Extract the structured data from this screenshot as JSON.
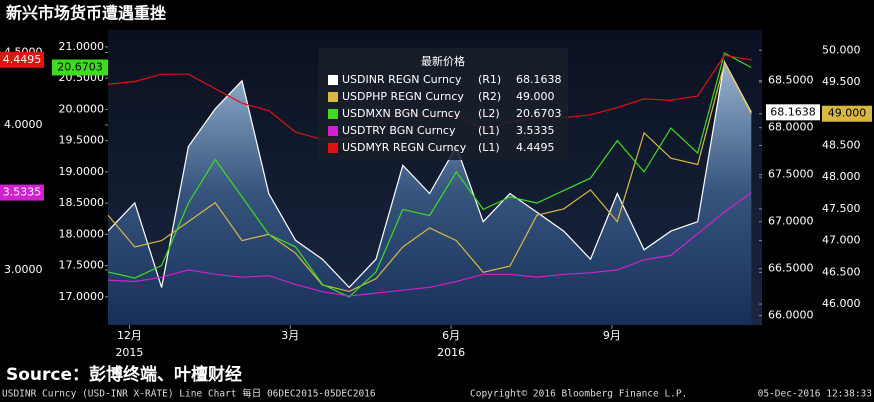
{
  "chart_data": {
    "type": "line",
    "title": "新兴市场货币遭遇重挫",
    "x": [
      0,
      0.5,
      1,
      1.5,
      2,
      2.5,
      3,
      3.5,
      4,
      4.5,
      5,
      5.5,
      6,
      6.5,
      7,
      7.5,
      8,
      8.5,
      9,
      9.5,
      10,
      10.5,
      11,
      11.5,
      12
    ],
    "xlim": [
      0,
      12.2
    ],
    "xticks": [
      {
        "value": 0.4,
        "label": "12月"
      },
      {
        "value": 3.4,
        "label": "3月"
      },
      {
        "value": 6.4,
        "label": "6月"
      },
      {
        "value": 9.4,
        "label": "9月"
      }
    ],
    "year_ticks": [
      {
        "value": 0.4,
        "label": "2015"
      },
      {
        "value": 6.4,
        "label": "2016"
      }
    ],
    "y_axes": {
      "(L1)": {
        "lim": [
          2.62,
          4.655
        ],
        "ticks": [
          {
            "value": 4.5,
            "label": "4.5000"
          },
          {
            "value": 4,
            "label": "4.0000"
          },
          {
            "value": 3,
            "label": "3.0000"
          }
        ]
      },
      "(L2)": {
        "lim": [
          16.55,
          21.27
        ],
        "ticks": [
          {
            "value": 21,
            "label": "21.0000"
          },
          {
            "value": 20.5,
            "label": "20.5000"
          },
          {
            "value": 20,
            "label": "20.0000"
          },
          {
            "value": 19.5,
            "label": "19.5000"
          },
          {
            "value": 19,
            "label": "19.0000"
          },
          {
            "value": 18.5,
            "label": "18.5000"
          },
          {
            "value": 18,
            "label": "18.0000"
          },
          {
            "value": 17.5,
            "label": "17.5000"
          },
          {
            "value": 17,
            "label": "17.0000"
          }
        ]
      },
      "(R1)": {
        "lim": [
          65.9,
          69.04
        ],
        "ticks": [
          {
            "value": 68.5,
            "label": "68.5000"
          },
          {
            "value": 68,
            "label": "68.0000"
          },
          {
            "value": 67.5,
            "label": "67.5000"
          },
          {
            "value": 67,
            "label": "67.0000"
          },
          {
            "value": 66.5,
            "label": "66.5000"
          },
          {
            "value": 66,
            "label": "66.0000"
          }
        ]
      },
      "(R2)": {
        "lim": [
          45.67,
          50.32
        ],
        "ticks": [
          {
            "value": 50,
            "label": "50.000"
          },
          {
            "value": 49.5,
            "label": "49.500"
          },
          {
            "value": 49,
            "label": "49.000"
          },
          {
            "value": 48.5,
            "label": "48.500"
          },
          {
            "value": 48,
            "label": "48.000"
          },
          {
            "value": 47.5,
            "label": "47.500"
          },
          {
            "value": 47,
            "label": "47.000"
          },
          {
            "value": 46.5,
            "label": "46.500"
          },
          {
            "value": 46,
            "label": "46.000"
          }
        ]
      }
    },
    "legend_title": "最新价格",
    "series": [
      {
        "name": "USDINR REGN Curncy",
        "axis": "(R1)",
        "color": "#ffffff",
        "area": true,
        "last_label": "68.1638",
        "values": [
          66.9,
          67.2,
          66.3,
          67.8,
          68.2,
          68.5,
          67.3,
          66.8,
          66.6,
          66.3,
          66.6,
          67.6,
          67.3,
          67.8,
          67.0,
          67.3,
          67.1,
          66.9,
          66.6,
          67.3,
          66.7,
          66.9,
          67.0,
          68.7,
          68.1638
        ]
      },
      {
        "name": "USDPHP REGN Curncy",
        "axis": "(R2)",
        "color": "#d8b840",
        "last_label": "49.000",
        "values": [
          47.4,
          46.9,
          47.0,
          47.3,
          47.6,
          47.0,
          47.1,
          46.8,
          46.3,
          46.2,
          46.4,
          46.9,
          47.2,
          47.0,
          46.5,
          46.6,
          47.4,
          47.5,
          47.8,
          47.3,
          48.7,
          48.3,
          48.2,
          49.8,
          49.0
        ]
      },
      {
        "name": "USDMXN BGN Curncy",
        "axis": "(L2)",
        "color": "#3ddc20",
        "last_label": "20.6703",
        "values": [
          17.4,
          17.3,
          17.5,
          18.5,
          19.2,
          18.6,
          18.0,
          17.8,
          17.2,
          17.0,
          17.4,
          18.4,
          18.3,
          19.0,
          18.4,
          18.6,
          18.5,
          18.7,
          18.9,
          19.5,
          19.0,
          19.7,
          19.3,
          20.9,
          20.6703
        ]
      },
      {
        "name": "USDTRY BGN Curncy",
        "axis": "(L1)",
        "color": "#d020d0",
        "last_label": "3.5335",
        "values": [
          2.93,
          2.92,
          2.95,
          3.0,
          2.97,
          2.95,
          2.96,
          2.9,
          2.85,
          2.82,
          2.84,
          2.86,
          2.88,
          2.92,
          2.97,
          2.97,
          2.95,
          2.97,
          2.98,
          3.0,
          3.07,
          3.1,
          3.25,
          3.4,
          3.5335
        ]
      },
      {
        "name": "USDMYR REGN Curncy",
        "axis": "(L1)",
        "color": "#e01212",
        "last_label": "4.4495",
        "values": [
          4.28,
          4.3,
          4.35,
          4.35,
          4.25,
          4.15,
          4.1,
          3.95,
          3.9,
          3.9,
          4.0,
          4.1,
          4.05,
          4.07,
          3.97,
          4.02,
          4.05,
          4.05,
          4.07,
          4.12,
          4.18,
          4.17,
          4.2,
          4.48,
          4.4495
        ]
      }
    ],
    "source": "Source：彭博终端、叶檀财经",
    "footer_left": "USDINR Curncy (USD-INR X-RATE) Line Chart  每日 06DEC2015-05DEC2016",
    "footer_mid": "Copyright© 2016 Bloomberg Finance L.P.",
    "footer_right": "05-Dec-2016 12:38:33"
  }
}
